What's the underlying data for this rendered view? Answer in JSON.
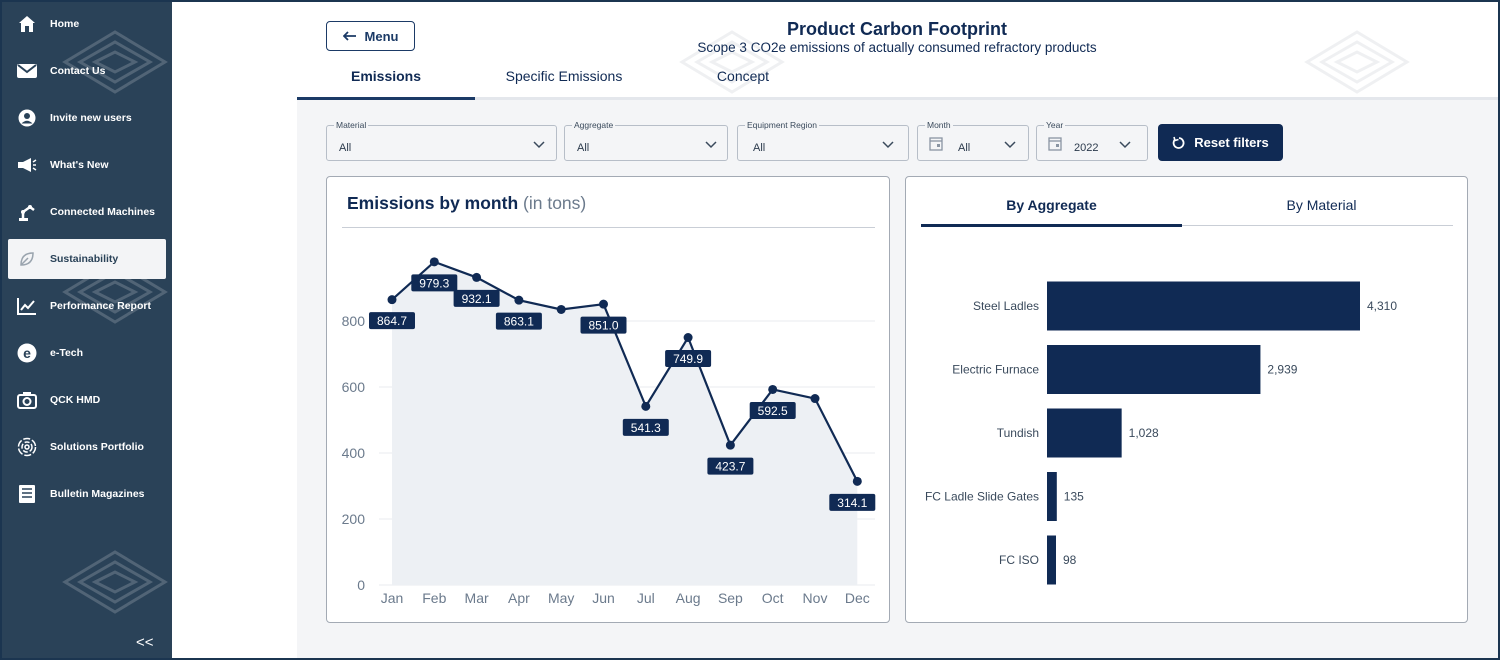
{
  "sidebar": {
    "items": [
      {
        "label": "Home",
        "icon": "home-icon",
        "active": false
      },
      {
        "label": "Contact Us",
        "icon": "envelope-icon",
        "active": false
      },
      {
        "label": "Invite new users",
        "icon": "user-icon",
        "active": false
      },
      {
        "label": "What's New",
        "icon": "megaphone-icon",
        "active": false
      },
      {
        "label": "Connected Machines",
        "icon": "robot-arm-icon",
        "active": false
      },
      {
        "label": "Sustainability",
        "icon": "leaf-icon",
        "active": true
      },
      {
        "label": "Performance Report",
        "icon": "trend-chart-icon",
        "active": false
      },
      {
        "label": "e-Tech",
        "icon": "e-tech-icon",
        "active": false
      },
      {
        "label": "QCK HMD",
        "icon": "camera-icon",
        "active": false
      },
      {
        "label": "Solutions Portfolio",
        "icon": "fingerprint-icon",
        "active": false
      },
      {
        "label": "Bulletin Magazines",
        "icon": "document-icon",
        "active": false
      }
    ],
    "collapse_label": "<<"
  },
  "header": {
    "menu_label": "Menu",
    "title": "Product Carbon Footprint",
    "subtitle": "Scope 3 CO2e emissions of actually consumed refractory products",
    "tabs": [
      {
        "label": "Emissions",
        "active": true
      },
      {
        "label": "Specific Emissions",
        "active": false
      },
      {
        "label": "Concept",
        "active": false
      }
    ]
  },
  "filters": {
    "material": {
      "label": "Material",
      "value": "All"
    },
    "aggregate": {
      "label": "Aggregate",
      "value": "All"
    },
    "equipment_region": {
      "label": "Equipment Region",
      "value": "All"
    },
    "month": {
      "label": "Month",
      "value": "All"
    },
    "year": {
      "label": "Year",
      "value": "2022"
    },
    "reset_label": "Reset filters"
  },
  "line_chart": {
    "title": "Emissions by month",
    "unit": "(in tons)"
  },
  "bar_panel": {
    "tabs": [
      {
        "label": "By Aggregate",
        "active": true
      },
      {
        "label": "By Material",
        "active": false
      }
    ]
  },
  "colors": {
    "navy": "#102a54",
    "sidebar": "#2a4258",
    "area_fill": "#edf0f4"
  },
  "chart_data": [
    {
      "type": "line",
      "title": "Emissions by month",
      "ylabel": "",
      "xlabel": "",
      "categories": [
        "Jan",
        "Feb",
        "Mar",
        "Apr",
        "May",
        "Jun",
        "Jul",
        "Aug",
        "Sep",
        "Oct",
        "Nov",
        "Dec"
      ],
      "values": [
        864.7,
        979.3,
        932.1,
        863.1,
        835,
        851.0,
        541.3,
        749.9,
        423.7,
        592.5,
        565,
        314.1
      ],
      "data_labels": [
        "864.7",
        "979.3",
        "932.1",
        "863.1",
        "",
        "851.0",
        "541.3",
        "749.9",
        "423.7",
        "592.5",
        "",
        "314.1"
      ],
      "yticks": [
        0,
        200,
        400,
        600,
        800
      ],
      "ylim": [
        0,
        1000
      ],
      "grid": true
    },
    {
      "type": "bar",
      "orientation": "horizontal",
      "categories": [
        "Steel Ladles",
        "Electric Furnace",
        "Tundish",
        "FC Ladle Slide Gates",
        "FC ISO"
      ],
      "values": [
        4310,
        2939,
        1028,
        135,
        98
      ],
      "value_labels": [
        "4,310",
        "2,939",
        "1,028",
        "135",
        "98"
      ],
      "xlim": [
        0,
        4310
      ]
    }
  ]
}
